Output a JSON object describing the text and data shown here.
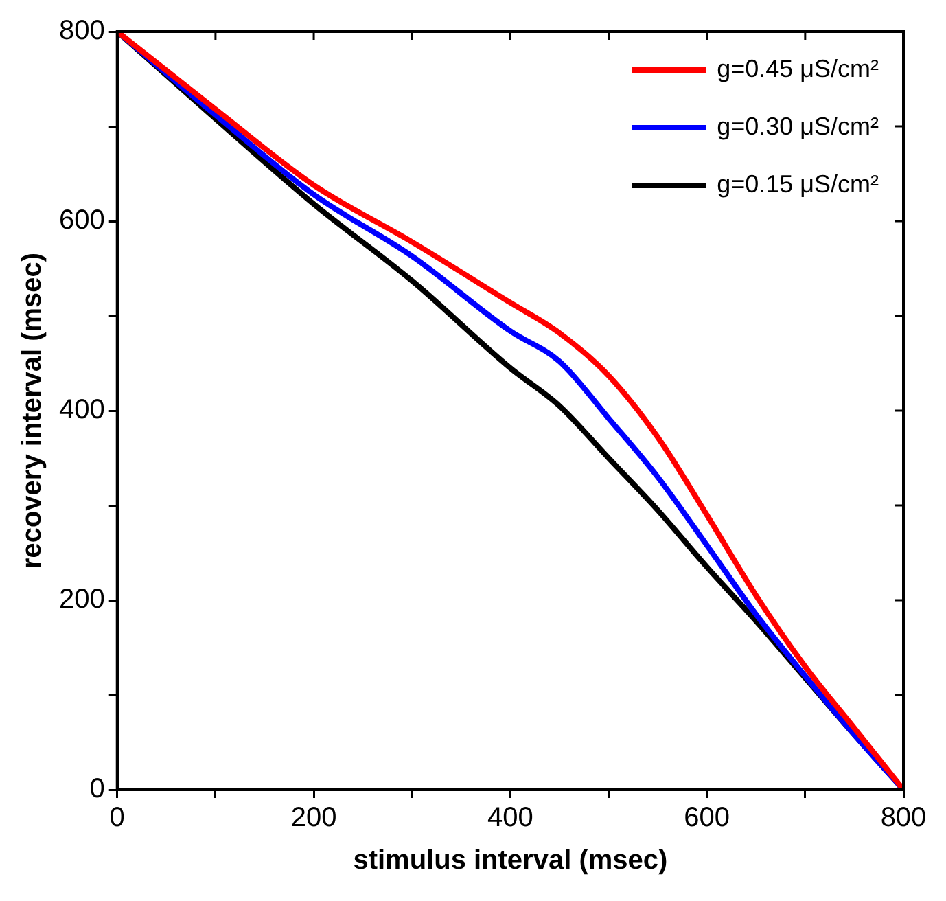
{
  "chart_data": {
    "type": "line",
    "xlabel": "stimulus interval (msec)",
    "ylabel": "recovery interval (msec)",
    "x": [
      0,
      100,
      200,
      300,
      400,
      450,
      500,
      550,
      600,
      650,
      700,
      750,
      800
    ],
    "series": [
      {
        "name": "g=0.45 μS/cm²",
        "color": "#ff0000",
        "values": [
          800,
          718,
          638,
          578,
          514,
          482,
          437,
          372,
          290,
          205,
          130,
          65,
          0
        ]
      },
      {
        "name": "g=0.30 μS/cm²",
        "color": "#0000ff",
        "values": [
          800,
          712,
          628,
          563,
          484,
          452,
          392,
          330,
          258,
          185,
          120,
          58,
          0
        ]
      },
      {
        "name": "g=0.15 μS/cm²",
        "color": "#000000",
        "values": [
          800,
          708,
          618,
          537,
          445,
          405,
          350,
          295,
          235,
          178,
          118,
          58,
          0
        ]
      }
    ],
    "xlim": [
      0,
      800
    ],
    "ylim": [
      0,
      800
    ],
    "xticks": [
      0,
      {
        "value": 100,
        "label": null
      },
      200,
      {
        "value": 300,
        "label": null
      },
      400,
      {
        "value": 500,
        "label": null
      },
      600,
      {
        "value": 700,
        "label": null
      },
      800
    ],
    "yticks": [
      0,
      {
        "value": 100,
        "label": null
      },
      200,
      {
        "value": 300,
        "label": null
      },
      400,
      {
        "value": 500,
        "label": null
      },
      600,
      {
        "value": 700,
        "label": null
      },
      800
    ],
    "grid": false,
    "legend": "top right",
    "marker": "none",
    "line_style": "solid"
  }
}
